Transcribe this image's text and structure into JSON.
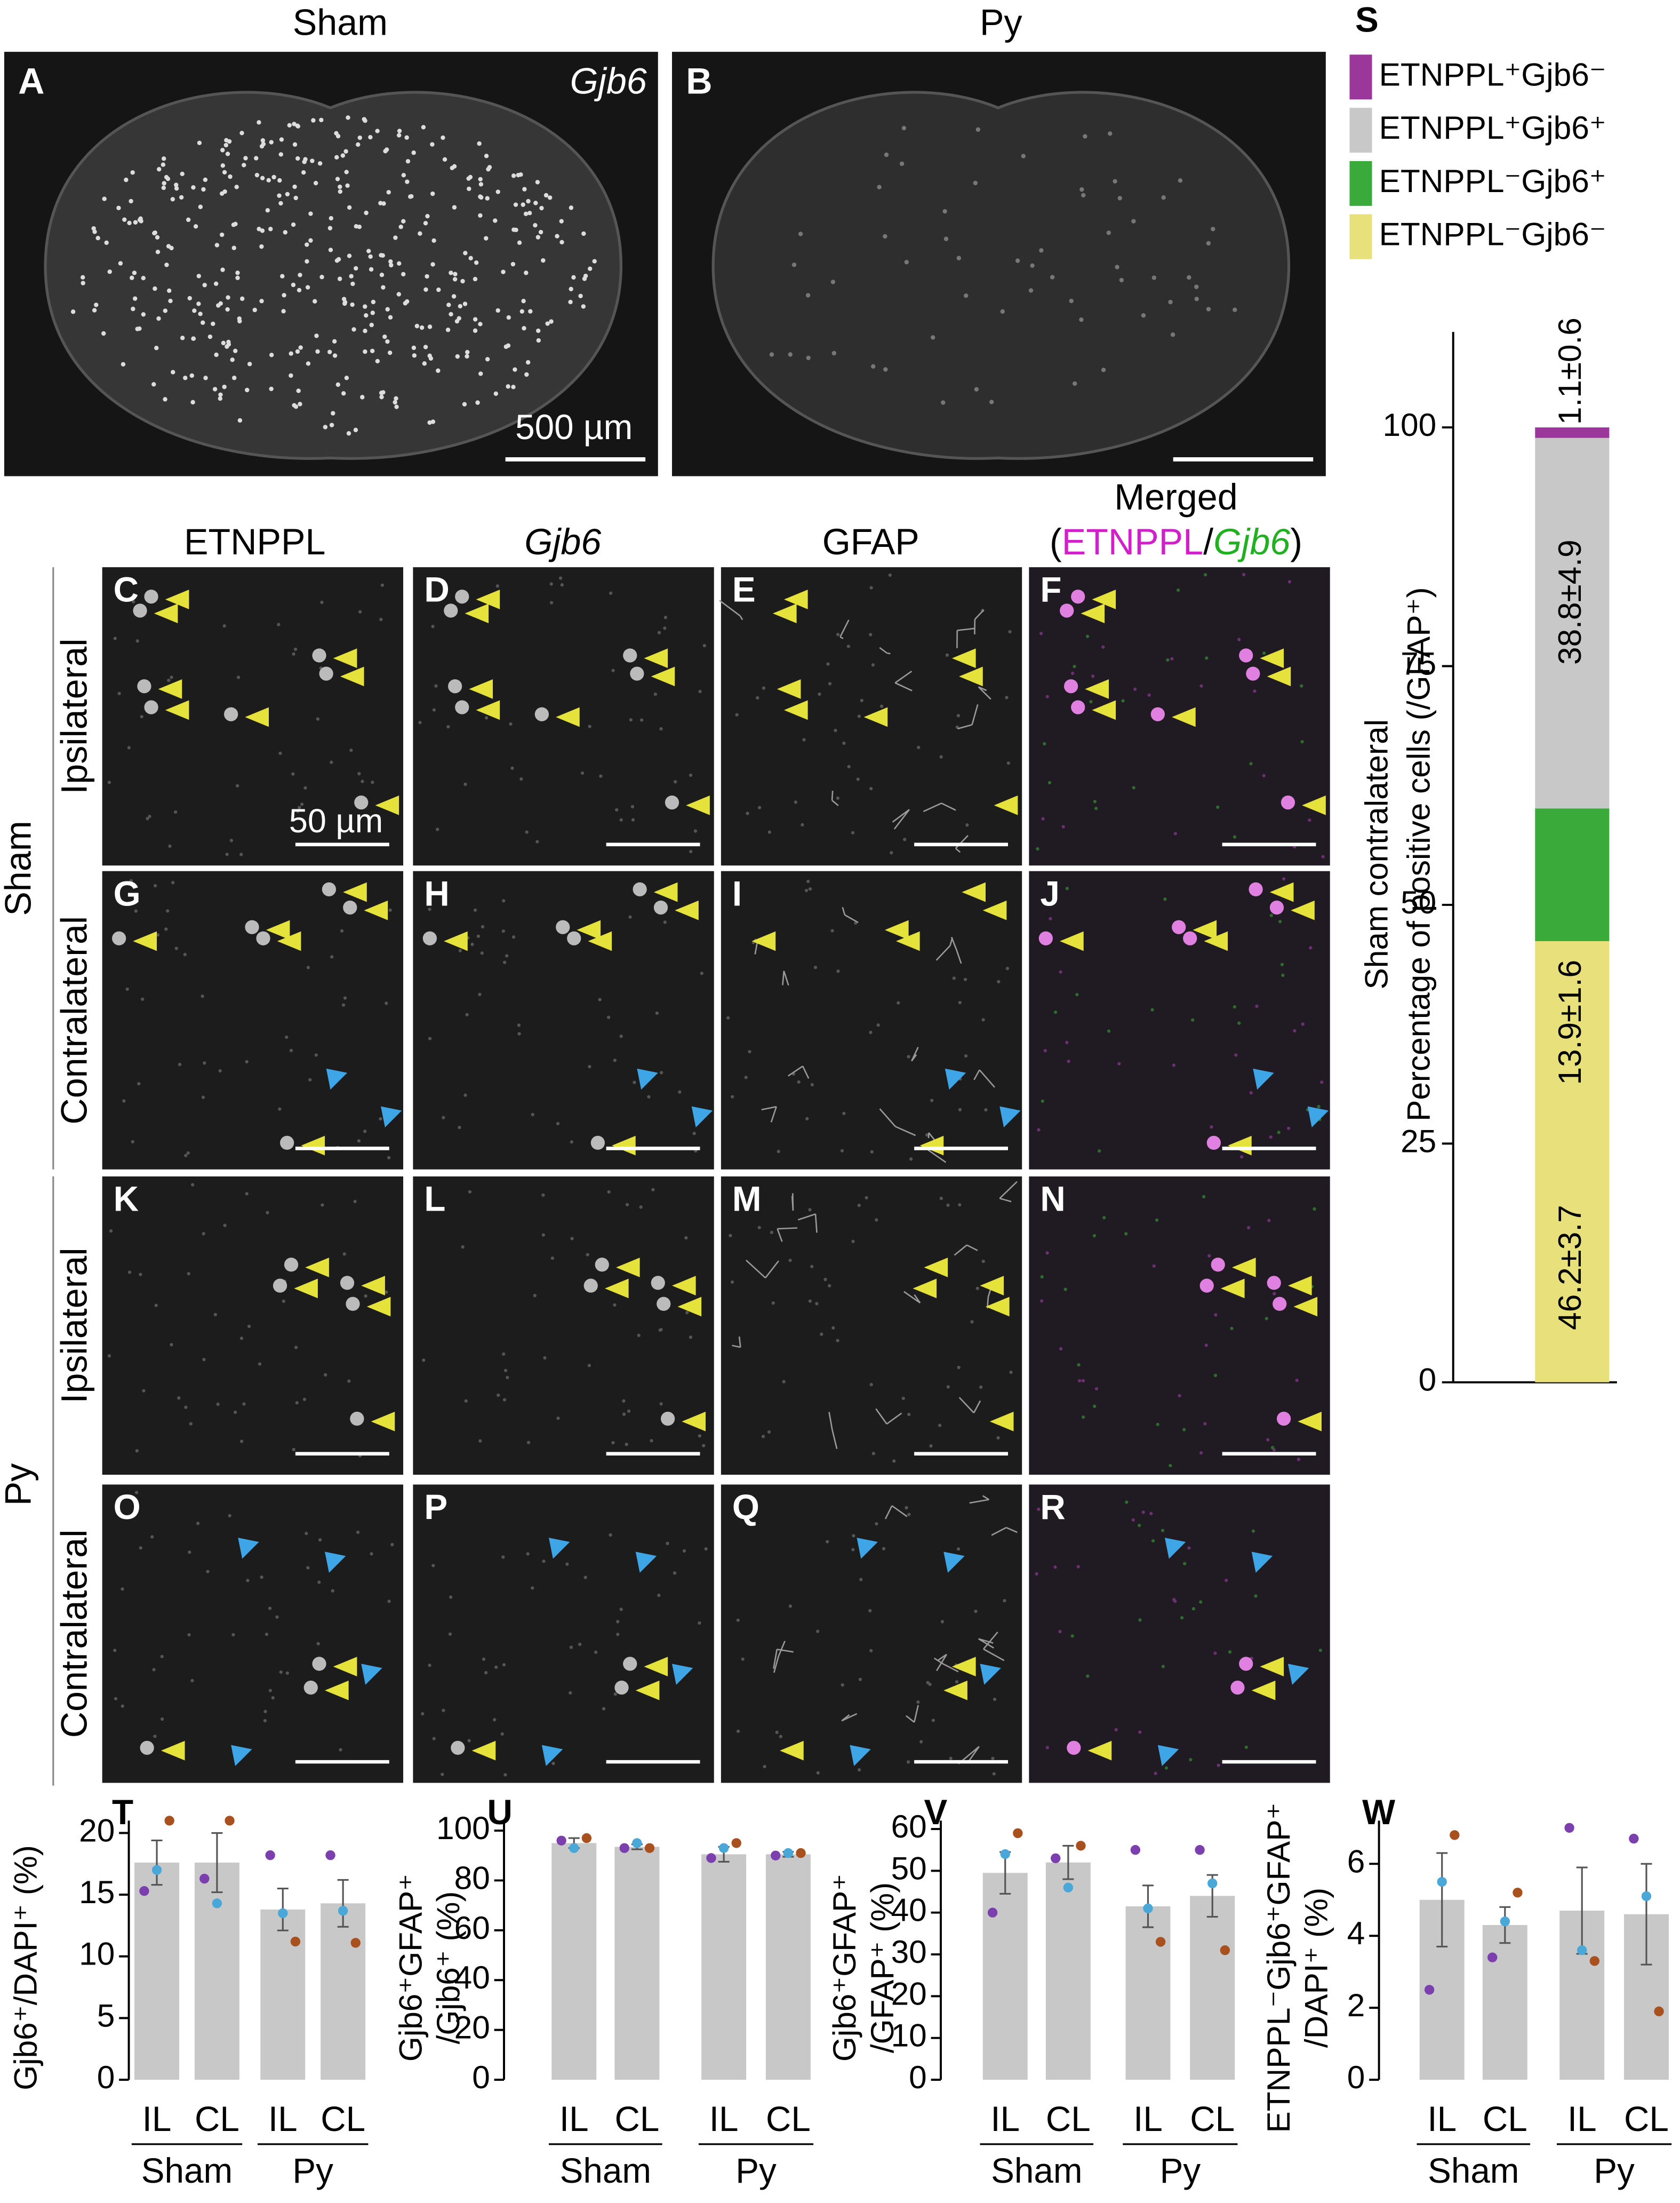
{
  "header": {
    "sham": "Sham",
    "py": "Py"
  },
  "overview": [
    {
      "label": "A",
      "gene": "Gjb6",
      "scale": "500 µm"
    },
    {
      "label": "B"
    }
  ],
  "columns": [
    "ETNPPL",
    "Gjb6",
    "GFAP"
  ],
  "merged": {
    "title": "Merged",
    "open": "(",
    "etnppl": "ETNPPL",
    "slash": "/",
    "gjb6": "Gjb6",
    "close": ")"
  },
  "side_labels": [
    "Ipsilateral",
    "Contralateral",
    "Ipsilateral",
    "Contralateral"
  ],
  "group_labels": [
    "Sham",
    "Py"
  ],
  "panels": [
    "C",
    "D",
    "E",
    "F",
    "G",
    "H",
    "I",
    "J",
    "K",
    "L",
    "M",
    "N",
    "O",
    "P",
    "Q",
    "R"
  ],
  "scale_label": "50 µm",
  "chart_data": [
    {
      "type": "stacked_bar",
      "label": "S",
      "ylabel": [
        "Sham contralateral",
        "Percentage of positive cells (/GFAP⁺)"
      ],
      "ylim": [
        0,
        110
      ],
      "yticks": [
        0,
        25,
        50,
        75,
        100
      ],
      "series": [
        {
          "name": "ETNPPL⁺Gjb6⁻",
          "color": "#9b379b",
          "values": [
            1.1
          ],
          "value_labels": [
            "1.1±0.6"
          ]
        },
        {
          "name": "ETNPPL⁺Gjb6⁺",
          "color": "#c8c8c8",
          "values": [
            38.8
          ],
          "value_labels": [
            "38.8±4.9"
          ]
        },
        {
          "name": "ETNPPL⁻Gjb6⁺",
          "color": "#3aab3a",
          "values": [
            13.9
          ],
          "value_labels": [
            "13.9±1.6"
          ]
        },
        {
          "name": "ETNPPL⁻Gjb6⁻",
          "color": "#e8e07a",
          "values": [
            46.2
          ],
          "value_labels": [
            "46.2±3.7"
          ]
        }
      ]
    },
    {
      "type": "bar",
      "label": "T",
      "ylabel": [
        "Gjb6⁺/DAPI⁺ (%)"
      ],
      "categories": [
        "IL",
        "CL",
        "IL",
        "CL"
      ],
      "groups": [
        "Sham",
        "Py"
      ],
      "values": [
        17.6,
        17.6,
        13.8,
        14.3
      ],
      "errors": [
        1.8,
        2.4,
        1.7,
        1.9
      ],
      "color": "#c8c8c8",
      "points": [
        [
          15.3,
          17,
          21
        ],
        [
          16.3,
          14.3,
          21
        ],
        [
          18.2,
          13.5,
          11.2
        ],
        [
          18.2,
          13.7,
          11.1
        ]
      ],
      "point_colors": [
        "#7b3fae",
        "#4aa8d8",
        "#a8501e"
      ],
      "ylim": [
        0,
        21
      ],
      "yticks": [
        0,
        5,
        10,
        15,
        20
      ]
    },
    {
      "type": "bar",
      "label": "U",
      "ylabel": [
        "Gjb6⁺GFAP⁺",
        "/Gjb6⁺ (%)"
      ],
      "categories": [
        "IL",
        "CL",
        "IL",
        "CL"
      ],
      "groups": [
        "Sham",
        "Py"
      ],
      "values": [
        95,
        93.5,
        90.5,
        90.5
      ],
      "errors": [
        2,
        1,
        3,
        1
      ],
      "color": "#c8c8c8",
      "points": [
        [
          96,
          93,
          97
        ],
        [
          93,
          95,
          93
        ],
        [
          89,
          93,
          95
        ],
        [
          90,
          91,
          91
        ]
      ],
      "point_colors": [
        "#7b3fae",
        "#4aa8d8",
        "#a8501e"
      ],
      "ylim": [
        0,
        104
      ],
      "yticks": [
        0,
        20,
        40,
        60,
        80,
        100
      ]
    },
    {
      "type": "bar",
      "label": "V",
      "ylabel": [
        "Gjb6⁺GFAP⁺",
        "/GFAP⁺ (%)"
      ],
      "categories": [
        "IL",
        "CL",
        "IL",
        "CL"
      ],
      "groups": [
        "Sham",
        "Py"
      ],
      "values": [
        49.5,
        52,
        41.5,
        44
      ],
      "errors": [
        5,
        4,
        5,
        5
      ],
      "color": "#c8c8c8",
      "points": [
        [
          40,
          54,
          59
        ],
        [
          53,
          46,
          56
        ],
        [
          55,
          41,
          33
        ],
        [
          55,
          47,
          31
        ]
      ],
      "point_colors": [
        "#7b3fae",
        "#4aa8d8",
        "#a8501e"
      ],
      "ylim": [
        0,
        62
      ],
      "yticks": [
        0,
        10,
        20,
        30,
        40,
        50,
        60
      ]
    },
    {
      "type": "bar",
      "label": "W",
      "ylabel": [
        "ETNPPL⁻Gjb6⁺GFAP⁺",
        "/DAPI⁺ (%)"
      ],
      "categories": [
        "IL",
        "CL",
        "IL",
        "CL"
      ],
      "groups": [
        "Sham",
        "Py"
      ],
      "values": [
        5,
        4.3,
        4.7,
        4.6
      ],
      "errors": [
        1.3,
        0.5,
        1.2,
        1.4
      ],
      "color": "#c8c8c8",
      "points": [
        [
          2.5,
          5.5,
          6.8
        ],
        [
          3.4,
          4.4,
          5.2
        ],
        [
          7,
          3.6,
          3.3
        ],
        [
          6.7,
          5.1,
          1.9
        ]
      ],
      "point_colors": [
        "#7b3fae",
        "#4aa8d8",
        "#a8501e"
      ],
      "ylim": [
        0,
        7.2
      ],
      "yticks": [
        0,
        2,
        4,
        6
      ]
    }
  ]
}
